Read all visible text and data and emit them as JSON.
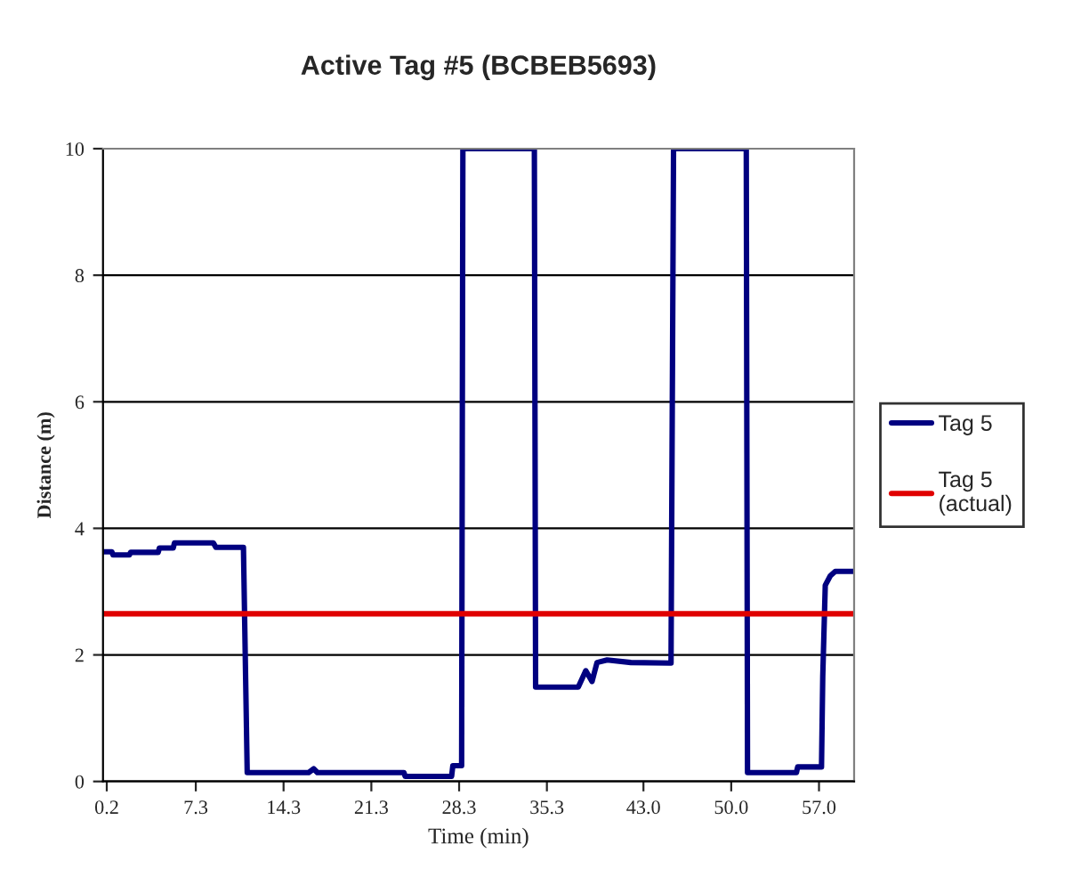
{
  "chart_data": {
    "type": "line",
    "title": "Active Tag #5 (BCBEB5693)",
    "xlabel": "Time (min)",
    "ylabel": "Distance (m)",
    "xlim": [
      -0.1,
      59.8
    ],
    "xticks": [
      0.2,
      7.3,
      14.3,
      {
        "value": 21.3,
        "label": "21.3"
      },
      28.3,
      35.3,
      {
        "value": 43.0,
        "label": "43.0"
      },
      {
        "value": 50.0,
        "label": "50.0"
      },
      {
        "value": 57.0,
        "label": "57.0"
      }
    ],
    "ylim": [
      0,
      10
    ],
    "yticks": [
      0,
      2,
      4,
      6,
      8,
      10
    ],
    "grid": "y",
    "legend": "right",
    "marker": "none",
    "line_style": "solid",
    "series": [
      {
        "name": "Tag 5",
        "color": "#000080",
        "x": [
          -0.1,
          0.6,
          0.7,
          2.0,
          2.1,
          4.3,
          4.4,
          5.5,
          5.6,
          8.7,
          8.9,
          11.1,
          11.4,
          16.3,
          16.7,
          17.0,
          23.9,
          24.0,
          27.7,
          27.8,
          28.5,
          28.6,
          34.3,
          34.4,
          37.8,
          38.4,
          38.9,
          39.3,
          40.1,
          42.0,
          45.2,
          45.4,
          51.2,
          51.3,
          55.2,
          55.3,
          57.2,
          57.3,
          57.5,
          57.9,
          58.3,
          59.8
        ],
        "values": [
          3.63,
          3.63,
          3.58,
          3.58,
          3.62,
          3.62,
          3.69,
          3.69,
          3.77,
          3.77,
          3.7,
          3.7,
          0.14,
          0.14,
          0.2,
          0.14,
          0.14,
          0.08,
          0.08,
          0.25,
          0.25,
          10,
          10,
          1.49,
          1.49,
          1.75,
          1.58,
          1.88,
          1.92,
          1.88,
          1.87,
          10,
          10,
          0.14,
          0.14,
          0.23,
          0.23,
          1.66,
          3.1,
          3.25,
          3.32,
          3.32
        ]
      },
      {
        "name": "Tag 5\n(actual)",
        "color": "#e00000",
        "x": [
          -0.1,
          59.8
        ],
        "values": [
          2.65,
          2.65
        ]
      }
    ]
  }
}
